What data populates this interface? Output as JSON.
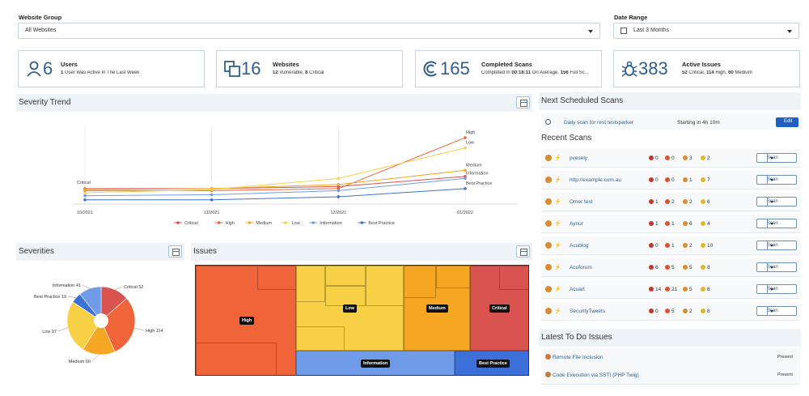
{
  "filters": {
    "website_group_label": "Website Group",
    "website_group_value": "All Websites",
    "date_range_label": "Date Range",
    "date_range_value": "Last 3 Months"
  },
  "cards": [
    {
      "icon": "user-icon",
      "number": "6",
      "title": "Users",
      "sub_bold1": "1",
      "sub_rest": " User Was Active In The Last Week"
    },
    {
      "icon": "websites-icon",
      "number": "16",
      "title": "Websites",
      "sub_bold1": "12",
      "sub_mid": " Vulnerable, ",
      "sub_bold2": "8",
      "sub_rest": " Critical"
    },
    {
      "icon": "scan-icon",
      "number": "165",
      "title": "Completed Scans",
      "sub_pre": "Completed In ",
      "sub_bold1": "00:18:11",
      "sub_mid": " On Average, ",
      "sub_bold2": "156",
      "sub_rest": " Full Sc..."
    },
    {
      "icon": "bug-icon",
      "number": "383",
      "title": "Active Issues",
      "sub_bold1": "52",
      "sub_mid": " Critical, ",
      "sub_bold2": "114",
      "sub_mid2": " High, ",
      "sub_bold3": "60",
      "sub_rest": " Medium"
    }
  ],
  "severity_trend": {
    "title": "Severity Trend",
    "legend": [
      "Critical",
      "High",
      "Medium",
      "Low",
      "Information",
      "Best Practice"
    ]
  },
  "severities": {
    "title": "Severities"
  },
  "issues": {
    "title": "Issues"
  },
  "next_scheduled": {
    "title": "Next Scheduled Scans",
    "scan_name": "Daily scan for rest testsparker",
    "starting": "Starting in 4h 10m",
    "edit_label": "Edit"
  },
  "recent_scans": {
    "title": "Recent Scans",
    "scan_label": "Scan",
    "rows": [
      {
        "name": "pvesely",
        "c": [
          "0",
          "0",
          "3",
          "2"
        ]
      },
      {
        "name": "http://example.com.au",
        "c": [
          "0",
          "0",
          "1",
          "7"
        ]
      },
      {
        "name": "Omer test",
        "c": [
          "1",
          "2",
          "2",
          "6"
        ]
      },
      {
        "name": "Aynur",
        "c": [
          "1",
          "1",
          "6",
          "4"
        ]
      },
      {
        "name": "Acublog",
        "c": [
          "0",
          "1",
          "2",
          "10"
        ]
      },
      {
        "name": "Acuforum",
        "c": [
          "6",
          "5",
          "5",
          "8"
        ]
      },
      {
        "name": "Acuart",
        "c": [
          "14",
          "21",
          "5",
          "8"
        ]
      },
      {
        "name": "SecurityTweets",
        "c": [
          "0",
          "5",
          "2",
          "8"
        ]
      }
    ]
  },
  "todo": {
    "title": "Latest To Do Issues",
    "items": [
      {
        "name": "Remote File Inclusion",
        "status": "Present"
      },
      {
        "name": "Code Execution via SSTI (PHP Twig)",
        "status": "Present"
      }
    ]
  },
  "colors": {
    "critical": "#d9534f",
    "high": "#f0643a",
    "medium": "#f5a623",
    "low": "#f7d046",
    "information": "#6f9be8",
    "best_practice": "#3d6fd8",
    "accent": "#2f5f8a"
  },
  "chart_data": [
    {
      "type": "line",
      "title": "Severity Trend",
      "x": [
        "10/2021",
        "11/2021",
        "12/2021",
        "01/2022"
      ],
      "series": [
        {
          "name": "Critical",
          "values": [
            12,
            12,
            14,
            24
          ]
        },
        {
          "name": "High",
          "values": [
            10,
            10,
            12,
            62
          ]
        },
        {
          "name": "Medium",
          "values": [
            11,
            12,
            16,
            30
          ]
        },
        {
          "name": "Low",
          "values": [
            8,
            11,
            22,
            52
          ]
        },
        {
          "name": "Information",
          "values": [
            5,
            6,
            10,
            22
          ]
        },
        {
          "name": "Best Practice",
          "values": [
            1,
            1,
            4,
            12
          ]
        }
      ],
      "end_labels": [
        "High",
        "Low",
        "Medium",
        "Information",
        "Best Practice"
      ],
      "start_label": "Critical",
      "grid": true,
      "legend": "bottom"
    },
    {
      "type": "pie",
      "title": "Severities",
      "slices": [
        {
          "label": "Critical",
          "value": 52
        },
        {
          "label": "High",
          "value": 114
        },
        {
          "label": "Medium",
          "value": 60
        },
        {
          "label": "Low",
          "value": 97
        },
        {
          "label": "Best Practice",
          "value": 19
        },
        {
          "label": "Information",
          "value": 41
        }
      ]
    },
    {
      "type": "heatmap",
      "title": "Issues",
      "blocks": [
        "High",
        "Low",
        "Medium",
        "Critical",
        "Information",
        "Best Practice"
      ]
    }
  ]
}
